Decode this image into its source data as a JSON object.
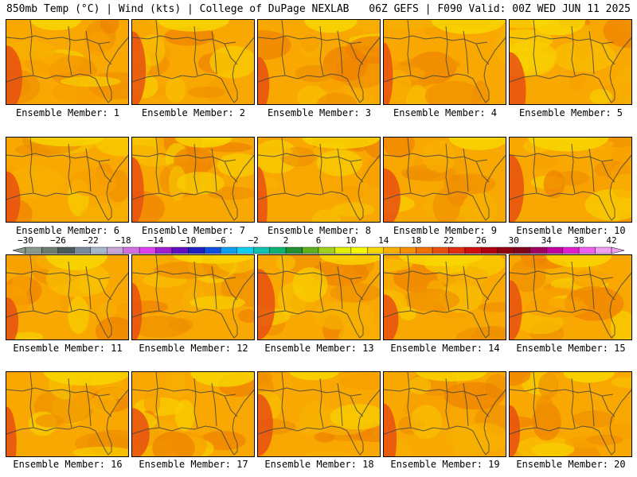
{
  "header": {
    "left": "850mb Temp (°C) | Wind (kts) | College of DuPage NEXLAB",
    "right": "06Z GEFS | F090 Valid: 00Z WED JUN 11 2025"
  },
  "panels": [
    {
      "label": "Ensemble Member: 1"
    },
    {
      "label": "Ensemble Member: 2"
    },
    {
      "label": "Ensemble Member: 3"
    },
    {
      "label": "Ensemble Member: 4"
    },
    {
      "label": "Ensemble Member: 5"
    },
    {
      "label": "Ensemble Member: 6"
    },
    {
      "label": "Ensemble Member: 7"
    },
    {
      "label": "Ensemble Member: 8"
    },
    {
      "label": "Ensemble Member: 9"
    },
    {
      "label": "Ensemble Member: 10"
    },
    {
      "label": "Ensemble Member: 11"
    },
    {
      "label": "Ensemble Member: 12"
    },
    {
      "label": "Ensemble Member: 13"
    },
    {
      "label": "Ensemble Member: 14"
    },
    {
      "label": "Ensemble Member: 15"
    },
    {
      "label": "Ensemble Member: 16"
    },
    {
      "label": "Ensemble Member: 17"
    },
    {
      "label": "Ensemble Member: 18"
    },
    {
      "label": "Ensemble Member: 19"
    },
    {
      "label": "Ensemble Member: 20"
    }
  ],
  "colorbar": {
    "ticks": [
      "-30",
      "-26",
      "-22",
      "-18",
      "-14",
      "-10",
      "-6",
      "-2",
      "2",
      "6",
      "10",
      "14",
      "18",
      "22",
      "26",
      "30",
      "34",
      "38",
      "42"
    ],
    "colors": [
      "#8a9a8a",
      "#6e7e6e",
      "#4a5a5a",
      "#7a8a9a",
      "#a8b8c8",
      "#c8a8d8",
      "#d070e0",
      "#e040f0",
      "#a020d0",
      "#6010c0",
      "#2020c0",
      "#1050e0",
      "#10a0f0",
      "#10d0f0",
      "#10c0b0",
      "#10b070",
      "#209030",
      "#60b020",
      "#a0d020",
      "#e0f000",
      "#f8f800",
      "#f8d800",
      "#f8b000",
      "#f89000",
      "#f07000",
      "#e85010",
      "#e03010",
      "#d01010",
      "#b00010",
      "#900010",
      "#800020",
      "#a00060",
      "#c000a0",
      "#e020d0",
      "#f060f0",
      "#f0a0f0"
    ]
  }
}
